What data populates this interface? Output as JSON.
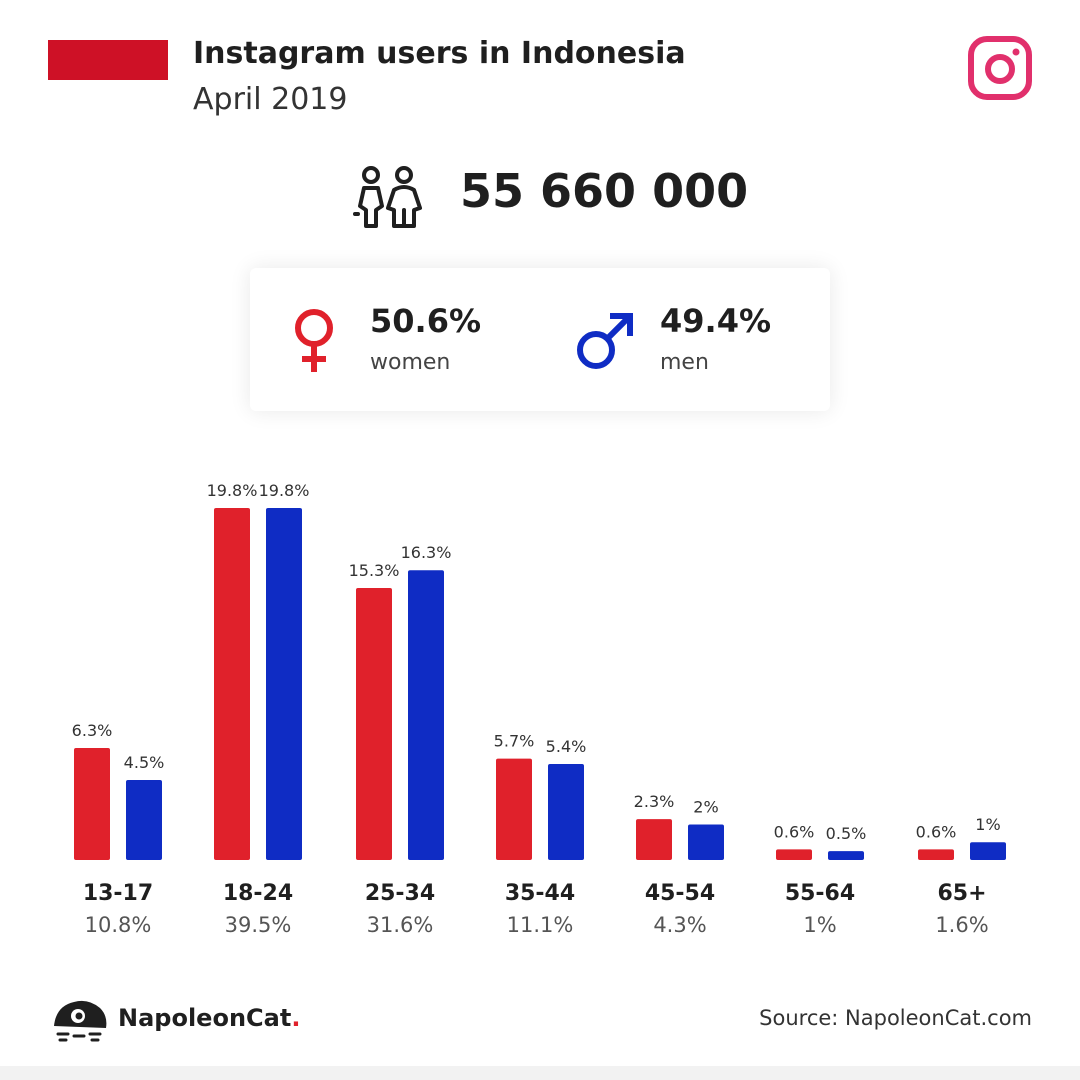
{
  "header": {
    "title": "Instagram users in Indonesia",
    "subtitle": "April 2019"
  },
  "colors": {
    "flag": "#ce1126",
    "women": "#e0212b",
    "men": "#0f2cc4",
    "instagram": "#e1306c"
  },
  "total_users": "55 660 000",
  "gender": {
    "women": {
      "value": "50.6%",
      "label": "women"
    },
    "men": {
      "value": "49.4%",
      "label": "men"
    }
  },
  "chart_data": {
    "type": "bar",
    "categories": [
      "13-17",
      "18-24",
      "25-34",
      "35-44",
      "45-54",
      "55-64",
      "65+"
    ],
    "category_totals": [
      "10.8%",
      "39.5%",
      "31.6%",
      "11.1%",
      "4.3%",
      "1%",
      "1.6%"
    ],
    "series": [
      {
        "values": [
          6.3,
          19.8,
          15.3,
          5.7,
          2.3,
          0.6,
          0.6
        ],
        "labels": [
          "6.3%",
          "19.8%",
          "15.3%",
          "5.7%",
          "2.3%",
          "0.6%",
          "0.6%"
        ],
        "color": "#e0212b"
      },
      {
        "values": [
          4.5,
          19.8,
          16.3,
          5.4,
          2.0,
          0.5,
          1.0
        ],
        "labels": [
          "4.5%",
          "19.8%",
          "16.3%",
          "5.4%",
          "2%",
          "0.5%",
          "1%"
        ],
        "color": "#0f2cc4"
      }
    ],
    "ylim": [
      0,
      19.8
    ],
    "grid": false,
    "legend": "none"
  },
  "footer": {
    "brand": "NapoleonCat",
    "brand_dot": ".",
    "source": "Source: NapoleonCat.com"
  }
}
